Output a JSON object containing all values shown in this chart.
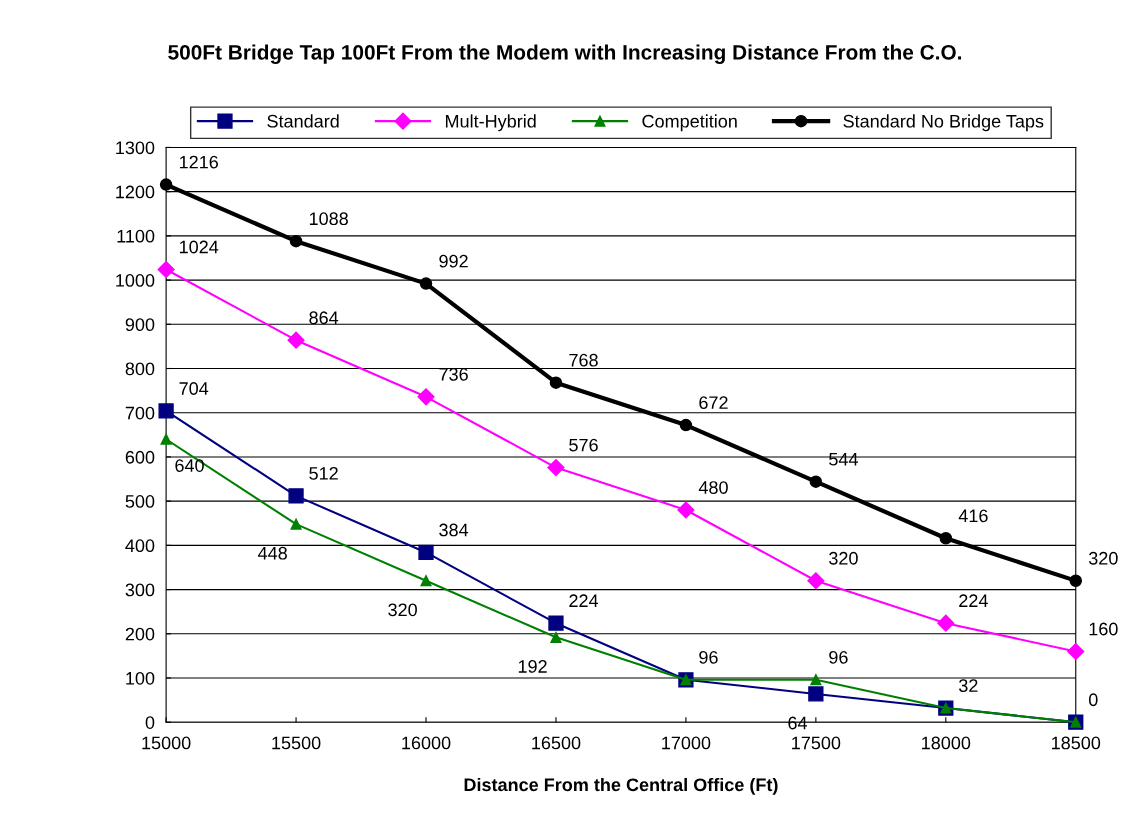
{
  "chart_data": {
    "type": "line",
    "title": "500Ft Bridge Tap 100Ft From the Modem with Increasing Distance From the C.O.",
    "xlabel": "Distance From the Central Office (Ft)",
    "x": [
      15000,
      15500,
      16000,
      16500,
      17000,
      17500,
      18000,
      18500
    ],
    "xlim": [
      15000,
      18500
    ],
    "xticks": [
      15000,
      15500,
      16000,
      16500,
      17000,
      17500,
      18000,
      18500
    ],
    "ylim": [
      0,
      1300
    ],
    "yticks": [
      0,
      100,
      200,
      300,
      400,
      500,
      600,
      700,
      800,
      900,
      1000,
      1100,
      1200,
      1300
    ],
    "grid": "y",
    "legend": "top",
    "line_style": "solid",
    "series": [
      {
        "name": "Standard",
        "color": "#000080",
        "marker": "square",
        "values": [
          704,
          512,
          384,
          224,
          96,
          64,
          32,
          0
        ],
        "value_labels": [
          "704",
          "512",
          "384",
          "224",
          "96",
          "64",
          null,
          "0"
        ]
      },
      {
        "name": "Mult-Hybrid",
        "color": "#ff00ff",
        "marker": "diamond",
        "values": [
          1024,
          864,
          736,
          576,
          480,
          320,
          224,
          160
        ],
        "value_labels": [
          "1024",
          "864",
          "736",
          "576",
          "480",
          "320",
          "224",
          "160"
        ]
      },
      {
        "name": "Competition",
        "color": "#008000",
        "marker": "triangle",
        "values": [
          640,
          448,
          320,
          192,
          96,
          96,
          32,
          0
        ],
        "value_labels": [
          "640",
          "448",
          "320",
          "192",
          null,
          "96",
          "32",
          null
        ]
      },
      {
        "name": "Standard No Bridge Taps",
        "color": "#000000",
        "marker": "circle",
        "values": [
          1216,
          1088,
          992,
          768,
          672,
          544,
          416,
          320
        ],
        "value_labels": [
          "1216",
          "1088",
          "992",
          "768",
          "672",
          "544",
          "416",
          "320"
        ]
      }
    ]
  }
}
